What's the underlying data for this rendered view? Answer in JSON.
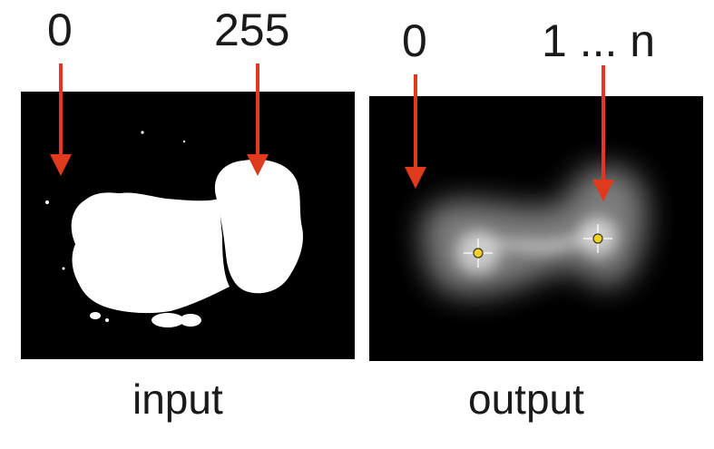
{
  "labels": {
    "input_zero": "0",
    "input_max": "255",
    "output_zero": "0",
    "output_range": "1 ... n",
    "input_caption": "input",
    "output_caption": "output"
  },
  "colors": {
    "arrow": "#e03a1e",
    "background": "#000000",
    "foreground": "#ffffff",
    "marker": "#f2d21b"
  }
}
